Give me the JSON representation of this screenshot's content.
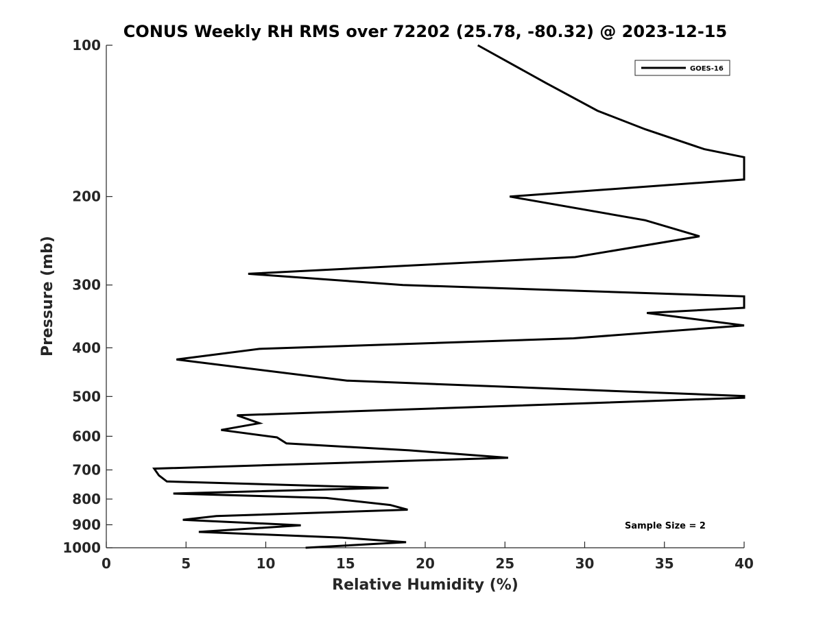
{
  "chart_data": {
    "type": "line",
    "title": "CONUS Weekly RH RMS over 72202 (25.78, -80.32) @ 2023-12-15",
    "xlabel": "Relative Humidity (%)",
    "ylabel": "Pressure (mb)",
    "xlim": [
      0,
      40
    ],
    "ylim": [
      100,
      1000
    ],
    "yscale": "log",
    "y_reversed": true,
    "grid": false,
    "legend_position": "top-right",
    "x_ticks": [
      0,
      5,
      10,
      15,
      20,
      25,
      30,
      35,
      40
    ],
    "x_tick_labels": [
      "0",
      "5",
      "10",
      "15",
      "20",
      "25",
      "30",
      "35",
      "40"
    ],
    "y_ticks": [
      100,
      200,
      300,
      400,
      500,
      600,
      700,
      800,
      900,
      1000
    ],
    "y_tick_labels": [
      "100",
      "200",
      "300",
      "400",
      "500",
      "600",
      "700",
      "800",
      "900",
      "1000"
    ],
    "annotation": "Sample Size = 2",
    "series": [
      {
        "name": "GOES-16",
        "color": "#000000",
        "points": [
          [
            23.3,
            100
          ],
          [
            27.6,
            119
          ],
          [
            30.8,
            135
          ],
          [
            33.8,
            147
          ],
          [
            37.5,
            161
          ],
          [
            40,
            167
          ],
          [
            40,
            185
          ],
          [
            25.3,
            200
          ],
          [
            33.8,
            223
          ],
          [
            37.2,
            240
          ],
          [
            29.4,
            264
          ],
          [
            8.9,
            285
          ],
          [
            18.6,
            300
          ],
          [
            40,
            316
          ],
          [
            40,
            333
          ],
          [
            33.9,
            341
          ],
          [
            40,
            361
          ],
          [
            29.3,
            383
          ],
          [
            9.6,
            402
          ],
          [
            4.4,
            422
          ],
          [
            15.1,
            465
          ],
          [
            40,
            499
          ],
          [
            40,
            503
          ],
          [
            8.2,
            545
          ],
          [
            9.6,
            565
          ],
          [
            7.2,
            583
          ],
          [
            10.7,
            603
          ],
          [
            11.3,
            620
          ],
          [
            19.0,
            640
          ],
          [
            25.2,
            662
          ],
          [
            3.0,
            696
          ],
          [
            3.3,
            718
          ],
          [
            3.8,
            738
          ],
          [
            17.7,
            760
          ],
          [
            4.2,
            780
          ],
          [
            13.8,
            796
          ],
          [
            17.8,
            822
          ],
          [
            18.9,
            840
          ],
          [
            6.9,
            865
          ],
          [
            4.8,
            880
          ],
          [
            12.2,
            902
          ],
          [
            5.8,
            930
          ],
          [
            14.8,
            955
          ],
          [
            18.8,
            975
          ],
          [
            12.5,
            1000
          ]
        ]
      }
    ]
  }
}
